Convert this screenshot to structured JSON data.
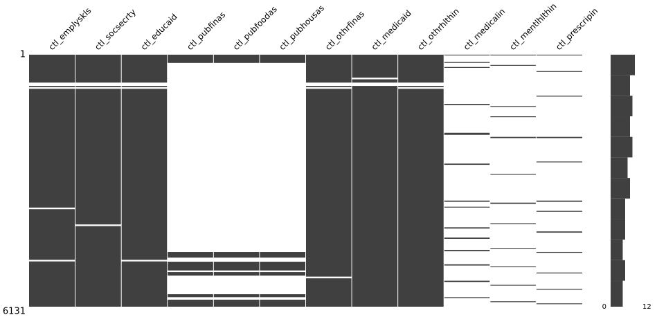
{
  "chart_data": {
    "type": "matrix",
    "color": "#404040",
    "ylim": [
      1,
      6131
    ],
    "yticks": [
      1,
      6131
    ],
    "columns": [
      {
        "name": "ctl_emplyskls",
        "present": [
          [
            1,
            680
          ],
          [
            760,
            790
          ],
          [
            830,
            3720
          ],
          [
            3760,
            4990
          ],
          [
            5030,
            6131
          ]
        ]
      },
      {
        "name": "ctl_socsecrty",
        "present": [
          [
            1,
            680
          ],
          [
            760,
            790
          ],
          [
            830,
            4130
          ],
          [
            4170,
            6131
          ]
        ]
      },
      {
        "name": "ctl_educaid",
        "present": [
          [
            1,
            680
          ],
          [
            760,
            790
          ],
          [
            830,
            4990
          ],
          [
            5030,
            6131
          ]
        ]
      },
      {
        "name": "ctl_pubfinas",
        "present": [
          [
            1,
            200
          ],
          [
            4801,
            4936
          ],
          [
            5037,
            5250
          ],
          [
            5290,
            5374
          ],
          [
            5828,
            5900
          ],
          [
            5960,
            6131
          ]
        ]
      },
      {
        "name": "ctl_pubfoodas",
        "present": [
          [
            1,
            200
          ],
          [
            4801,
            4936
          ],
          [
            5037,
            5250
          ],
          [
            5290,
            5374
          ],
          [
            5828,
            5900
          ],
          [
            5960,
            6131
          ]
        ]
      },
      {
        "name": "ctl_pubhousas",
        "present": [
          [
            1,
            200
          ],
          [
            4801,
            4936
          ],
          [
            5037,
            5250
          ],
          [
            5290,
            5374
          ],
          [
            5828,
            5900
          ],
          [
            5960,
            6131
          ]
        ]
      },
      {
        "name": "ctl_othrfinas",
        "present": [
          [
            1,
            680
          ],
          [
            760,
            790
          ],
          [
            830,
            5400
          ],
          [
            5440,
            6131
          ]
        ]
      },
      {
        "name": "ctl_medicaid",
        "present": [
          [
            1,
            560
          ],
          [
            600,
            680
          ],
          [
            760,
            6131
          ]
        ]
      },
      {
        "name": "ctl_othrhlthin",
        "present": [
          [
            1,
            680
          ],
          [
            760,
            790
          ],
          [
            830,
            6131
          ]
        ]
      },
      {
        "name": "ctl_medicalin",
        "present": [
          [
            1,
            20
          ],
          [
            180,
            200
          ],
          [
            300,
            320
          ],
          [
            1200,
            1230
          ],
          [
            1900,
            1950
          ],
          [
            2650,
            2680
          ],
          [
            3550,
            3580
          ],
          [
            3700,
            3720
          ],
          [
            4200,
            4230
          ],
          [
            4450,
            4480
          ],
          [
            4750,
            4780
          ],
          [
            5100,
            5130
          ],
          [
            5500,
            5530
          ],
          [
            5900,
            5920
          ]
        ]
      },
      {
        "name": "ctl_mentlhlthin",
        "present": [
          [
            1,
            20
          ],
          [
            250,
            270
          ],
          [
            1250,
            1270
          ],
          [
            1500,
            1520
          ],
          [
            2000,
            2030
          ],
          [
            2900,
            2920
          ],
          [
            3600,
            3630
          ],
          [
            4100,
            4120
          ],
          [
            4700,
            4720
          ],
          [
            5150,
            5170
          ],
          [
            5600,
            5620
          ],
          [
            6000,
            6020
          ]
        ]
      },
      {
        "name": "ctl_prescripin",
        "present": [
          [
            1,
            20
          ],
          [
            400,
            420
          ],
          [
            1000,
            1020
          ],
          [
            2000,
            2030
          ],
          [
            2600,
            2620
          ],
          [
            3550,
            3580
          ],
          [
            3800,
            3820
          ],
          [
            4300,
            4330
          ],
          [
            4800,
            4820
          ],
          [
            5300,
            5320
          ],
          [
            5700,
            5720
          ],
          [
            6050,
            6070
          ]
        ]
      }
    ],
    "sparkline": {
      "xlim": [
        0,
        12
      ],
      "xticks": [
        0,
        12
      ],
      "rows": [
        1,
        500,
        1000,
        1500,
        2000,
        2500,
        3000,
        3500,
        4000,
        4500,
        5000,
        5500,
        6131
      ],
      "values": [
        10,
        8,
        9,
        8,
        9,
        7,
        8,
        6,
        6,
        5,
        6,
        5,
        6
      ]
    }
  }
}
